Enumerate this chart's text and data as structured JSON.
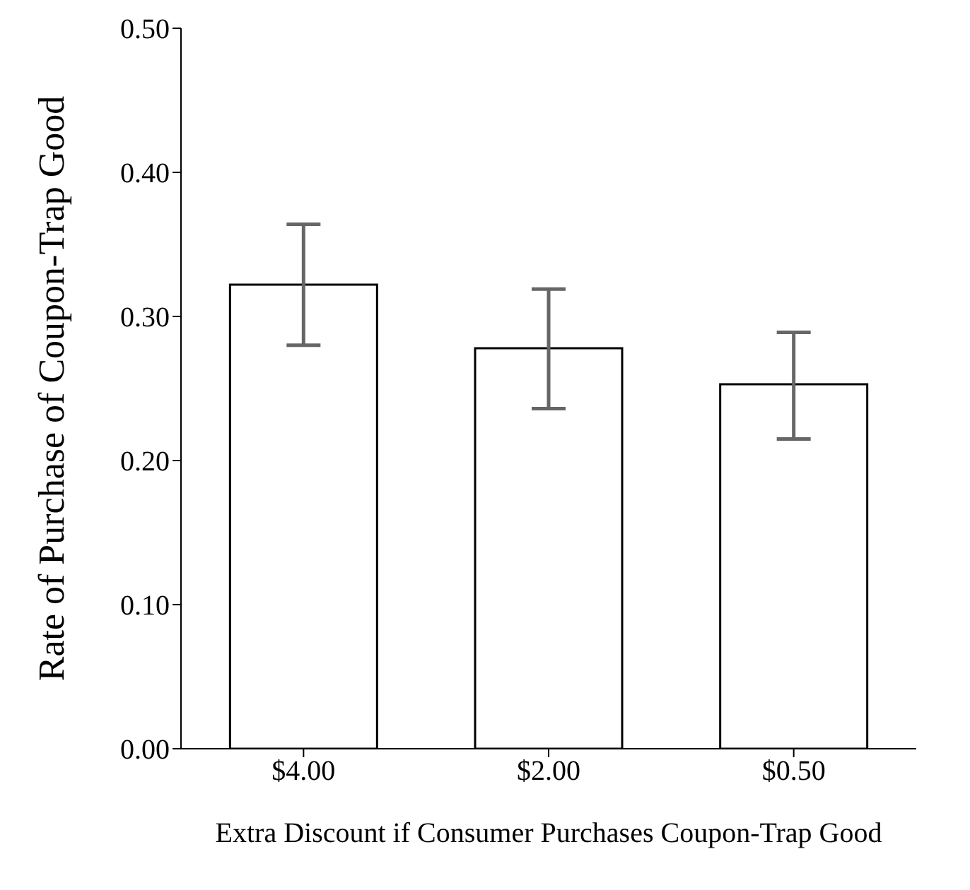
{
  "chart_data": {
    "type": "bar",
    "xlabel": "Extra Discount if Consumer Purchases Coupon-Trap Good",
    "ylabel": "Rate of Purchase of Coupon-Trap Good",
    "categories": [
      "$4.00",
      "$2.00",
      "$0.50"
    ],
    "values": [
      0.322,
      0.278,
      0.253
    ],
    "errors": [
      [
        0.28,
        0.364
      ],
      [
        0.236,
        0.319
      ],
      [
        0.215,
        0.289
      ]
    ],
    "color": "#ffffff",
    "ylim": [
      0,
      0.5
    ],
    "yticks": [
      {
        "value": 0,
        "label": "0.00"
      },
      {
        "value": 0.1,
        "label": "0.10"
      },
      {
        "value": 0.2,
        "label": "0.20"
      },
      {
        "value": 0.3,
        "label": "0.30"
      },
      {
        "value": 0.4,
        "label": "0.40"
      },
      {
        "value": 0.5,
        "label": "0.50"
      }
    ],
    "grid": false,
    "legend": false
  }
}
